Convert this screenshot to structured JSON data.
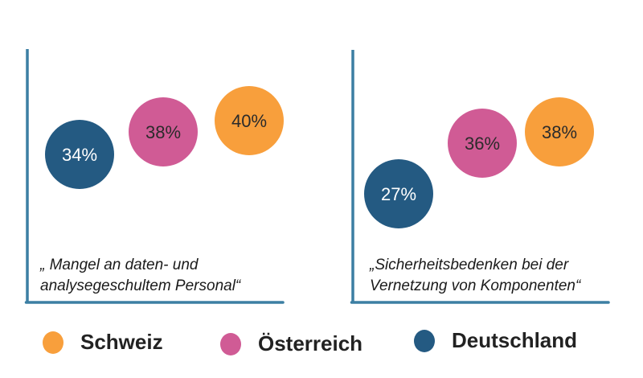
{
  "colors": {
    "axis": "#3c7fa3",
    "Schweiz": "#f89f3c",
    "Österreich": "#d05b95",
    "Deutschland": "#245a82",
    "label_dark": "#2b2b2b",
    "label_light": "#ffffff"
  },
  "chart_data": [
    {
      "type": "scatter",
      "title": "",
      "caption_lines": [
        "„ Mangel an daten- und",
        "analysegeschultem Personal“"
      ],
      "xlabel": "",
      "ylabel": "",
      "grid": false,
      "categories": [
        "Deutschland",
        "Österreich",
        "Schweiz"
      ],
      "values": [
        34,
        38,
        40
      ],
      "labels": [
        "34%",
        "38%",
        "40%"
      ],
      "unit": "%"
    },
    {
      "type": "scatter",
      "title": "",
      "caption_lines": [
        "„Sicherheitsbedenken bei der",
        "Vernetzung von Komponenten“"
      ],
      "xlabel": "",
      "ylabel": "",
      "grid": false,
      "categories": [
        "Deutschland",
        "Österreich",
        "Schweiz"
      ],
      "values": [
        27,
        36,
        38
      ],
      "labels": [
        "27%",
        "36%",
        "38%"
      ],
      "unit": "%"
    }
  ],
  "legend": {
    "position": "bottom",
    "items": [
      {
        "label": "Schweiz",
        "color": "#f89f3c"
      },
      {
        "label": "Österreich",
        "color": "#d05b95"
      },
      {
        "label": "Deutschland",
        "color": "#245a82"
      }
    ]
  }
}
